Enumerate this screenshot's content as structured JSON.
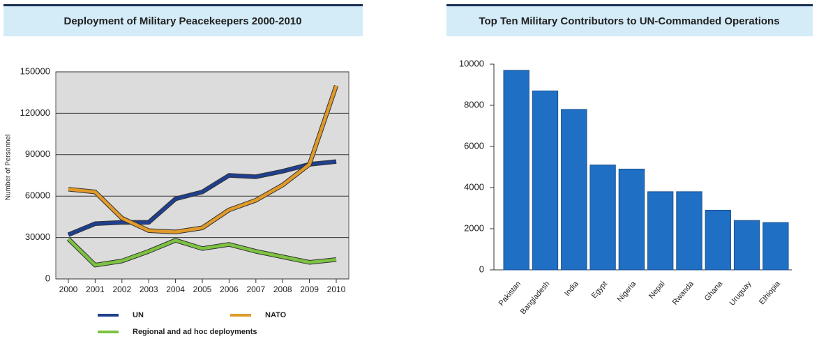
{
  "chart_data": [
    {
      "type": "line",
      "title": "Deployment of Military Peacekeepers 2000-2010",
      "y_label": "Number of Personnel",
      "categories": [
        "2000",
        "2001",
        "2002",
        "2003",
        "2004",
        "2005",
        "2006",
        "2007",
        "2008",
        "2009",
        "2010"
      ],
      "series": [
        {
          "name": "UN",
          "color": "#1f3f8f",
          "values": [
            32000,
            40000,
            41000,
            41000,
            58000,
            63000,
            75000,
            74000,
            78000,
            83000,
            85000
          ]
        },
        {
          "name": "NATO",
          "color": "#e09a2a",
          "values": [
            65000,
            63000,
            44000,
            35000,
            34000,
            37000,
            50000,
            57000,
            68000,
            83000,
            140000
          ]
        },
        {
          "name": "Regional and ad hoc deployments",
          "color": "#7dc242",
          "values": [
            29000,
            10000,
            13000,
            20000,
            28000,
            22000,
            25000,
            20000,
            16000,
            12000,
            14000
          ]
        }
      ],
      "ylim": [
        0,
        150000
      ],
      "yticks": [
        0,
        30000,
        60000,
        90000,
        120000,
        150000
      ],
      "grid": true
    },
    {
      "type": "bar",
      "title": "Top Ten Military Contributors to UN-Commanded Operations",
      "categories": [
        "Pakistan",
        "Bangladesh",
        "India",
        "Egypt",
        "Nigeria",
        "Nepal",
        "Rwanda",
        "Ghana",
        "Uruguay",
        "Ethiopia"
      ],
      "values": [
        9700,
        8700,
        7800,
        5100,
        4900,
        3800,
        3800,
        2900,
        2400,
        2300
      ],
      "color": "#1f6fc4",
      "ylim": [
        0,
        10000
      ],
      "yticks": [
        0,
        2000,
        4000,
        6000,
        8000,
        10000
      ],
      "grid": false
    }
  ]
}
